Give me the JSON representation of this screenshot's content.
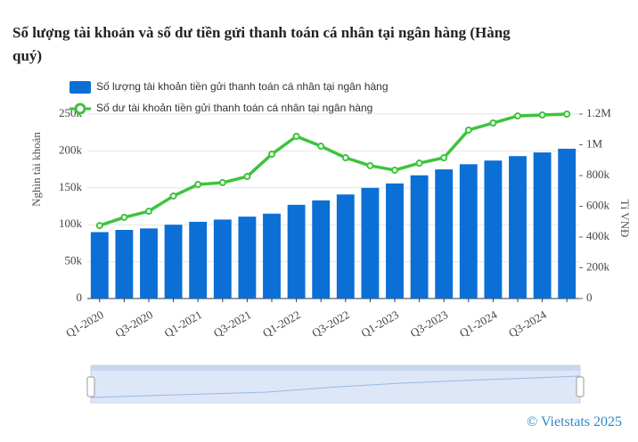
{
  "chart_data": {
    "type": "bar-line",
    "title": "Số lượng tài khoản và số dư tiền gửi thanh toán cá nhân tại ngân hàng (Hàng quý)",
    "categories": [
      "Q1-2020",
      null,
      "Q3-2020",
      null,
      "Q1-2021",
      null,
      "Q3-2021",
      null,
      "Q1-2022",
      null,
      "Q3-2022",
      null,
      "Q1-2023",
      null,
      "Q3-2023",
      null,
      "Q1-2024",
      null,
      "Q3-2024",
      null
    ],
    "series": [
      {
        "name": "Số lượng tài khoản tiền gửi thanh toán cá nhân tại ngân hàng",
        "type": "bar",
        "color": "#0b6fd6",
        "values": [
          90000,
          93000,
          95000,
          100000,
          104000,
          107000,
          111000,
          115000,
          127000,
          133000,
          141000,
          150000,
          156000,
          167000,
          175000,
          182000,
          187000,
          193000,
          198000,
          203000
        ]
      },
      {
        "name": "Số dư tài khoản tiền gửi thanh toán cá nhân tại ngân hàng",
        "type": "line",
        "color": "#3cc43c",
        "axis": "y2",
        "values": [
          475000,
          528000,
          568000,
          667000,
          742000,
          754000,
          794000,
          939000,
          1055000,
          991000,
          916000,
          864000,
          835000,
          881000,
          916000,
          1096000,
          1142000,
          1188000,
          1194000,
          1200000
        ]
      }
    ],
    "ylabel": "Nghìn tài khoản",
    "y2label": "Tỉ VNĐ",
    "ylim": [
      0,
      250000
    ],
    "yticks": [
      0,
      {
        "value": 50000,
        "label": "50k"
      },
      {
        "value": 100000,
        "label": "100k"
      },
      {
        "value": 150000,
        "label": "150k"
      },
      {
        "value": 200000,
        "label": "200k"
      },
      {
        "value": 250000,
        "label": "250k"
      }
    ],
    "y2lim": [
      0,
      1200000
    ],
    "y2ticks": [
      0,
      {
        "value": 200000,
        "label": "200k"
      },
      {
        "value": 400000,
        "label": "400k"
      },
      {
        "value": 600000,
        "label": "600k"
      },
      {
        "value": 800000,
        "label": "800k"
      },
      {
        "value": 1000000,
        "label": "1M"
      },
      {
        "value": 1200000,
        "label": "1.2M"
      }
    ],
    "grid": true,
    "source": "© Vietstats 2025"
  }
}
